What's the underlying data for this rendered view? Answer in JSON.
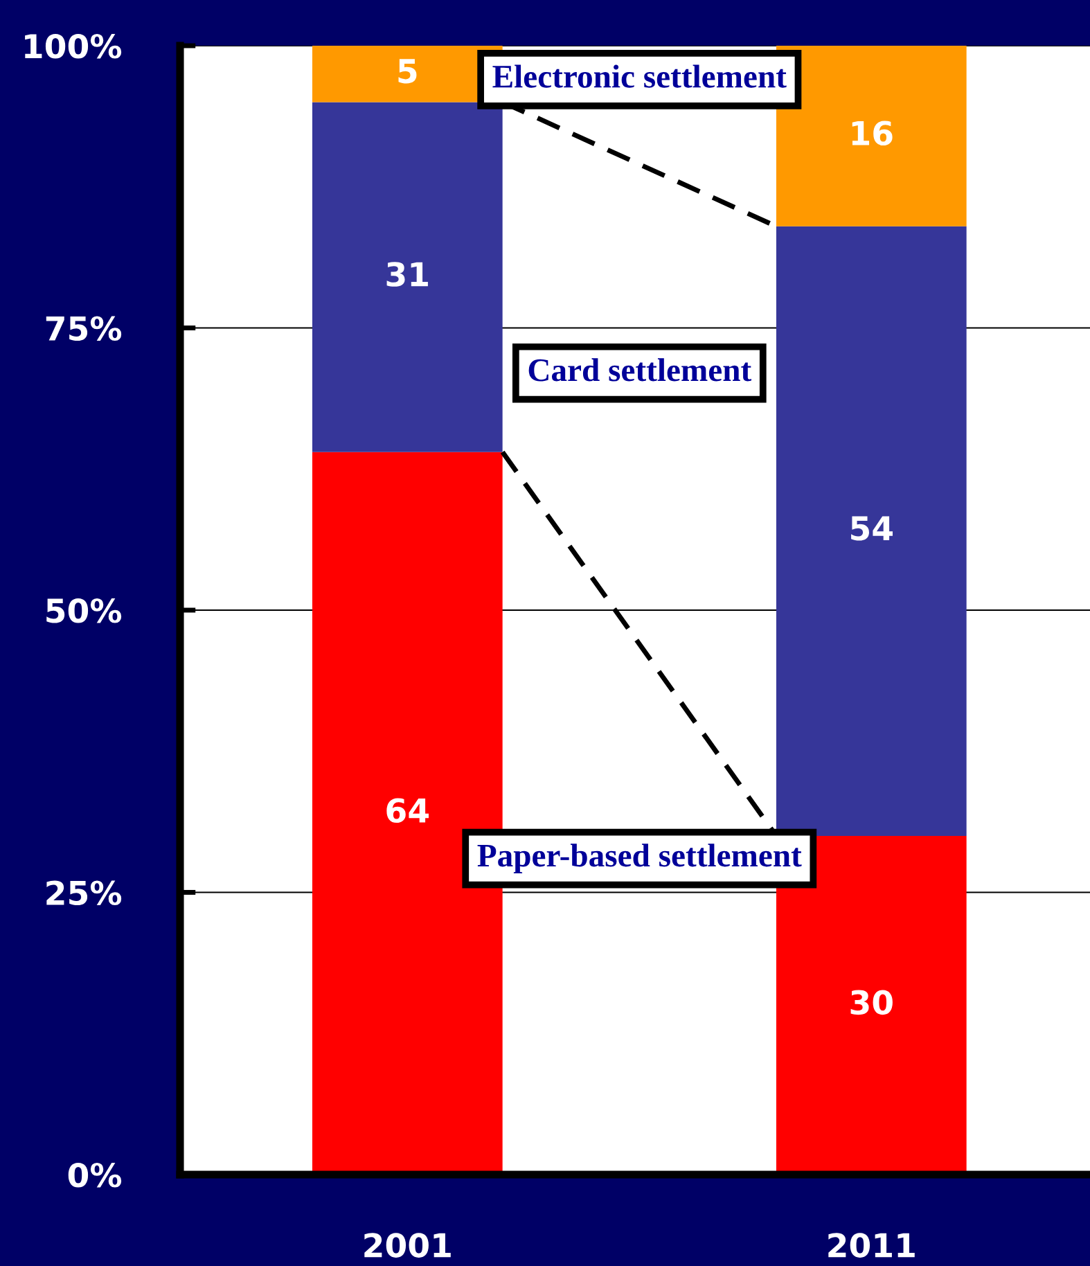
{
  "chart_data": {
    "type": "bar",
    "stacked": true,
    "categories": [
      "2001",
      "2011"
    ],
    "series": [
      {
        "name": "Paper-based settlement",
        "color": "#ff0000",
        "values": [
          64,
          30
        ]
      },
      {
        "name": "Card settlement",
        "color": "#363699",
        "values": [
          31,
          54
        ]
      },
      {
        "name": "Electronic settlement",
        "color": "#ff9900",
        "values": [
          5,
          16
        ]
      }
    ],
    "ylim": [
      0,
      100
    ],
    "yticks": [
      {
        "value": 0,
        "label": "0%"
      },
      {
        "value": 25,
        "label": "25%"
      },
      {
        "value": 50,
        "label": "50%"
      },
      {
        "value": 75,
        "label": "75%"
      },
      {
        "value": 100,
        "label": "100%"
      }
    ],
    "grid": "y",
    "legend": false,
    "data_labels": true
  }
}
